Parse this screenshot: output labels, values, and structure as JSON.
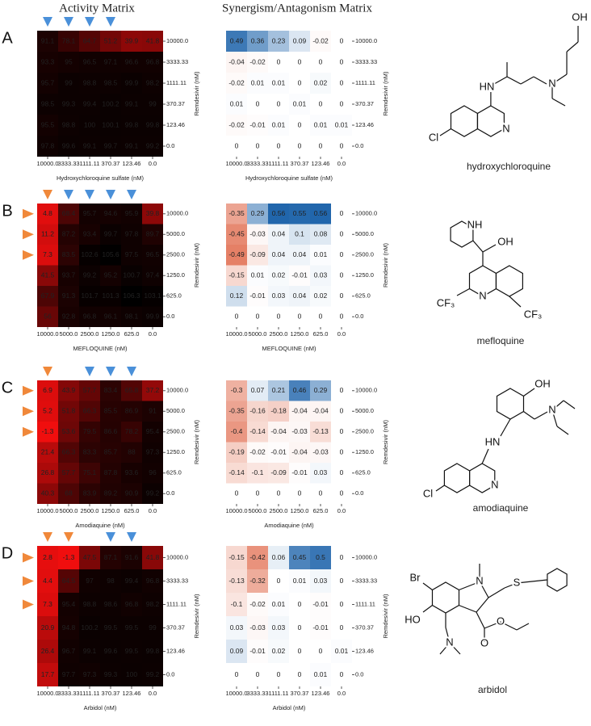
{
  "headers": [
    "Activity Matrix",
    "Synergism/Antagonism Matrix"
  ],
  "panels": [
    {
      "label": "A",
      "compound": "hydroxychloroquine",
      "xlabel": "Hydroxychloroquine sulfate (nM)",
      "ylabel": "Remdesivir (nM)",
      "x_categories": [
        "10000.0",
        "3333.33",
        "1111.11",
        "370.37",
        "123.46",
        "0.0"
      ],
      "y_categories": [
        "10000.0",
        "3333.33",
        "1111.11",
        "370.37",
        "123.46",
        "0.0"
      ],
      "col_markers": [
        "#4a90d9",
        "#4a90d9",
        "#4a90d9",
        "#4a90d9",
        null,
        null
      ],
      "row_markers": [
        null,
        null,
        null,
        null,
        null,
        null
      ],
      "activity": {
        "values": [
          [
            91.1,
            78.1,
            64.7,
            51.2,
            39.9,
            41.8
          ],
          [
            93.3,
            95,
            96.5,
            97.1,
            96.6,
            96.8
          ],
          [
            95.7,
            99,
            98.8,
            98.5,
            99.9,
            98.2
          ],
          [
            98.5,
            99.3,
            99.4,
            100.2,
            99.1,
            99
          ],
          [
            95.5,
            98.8,
            100,
            100.1,
            99.8,
            99.8
          ],
          [
            97.8,
            99.6,
            99.1,
            99.7,
            99.1,
            99.2
          ]
        ]
      },
      "synergy": {
        "values": [
          [
            0.49,
            0.36,
            0.23,
            0.09,
            -0.02,
            0
          ],
          [
            -0.04,
            -0.02,
            0,
            0,
            0,
            0
          ],
          [
            -0.02,
            0.01,
            0.01,
            0,
            0.02,
            0
          ],
          [
            0.01,
            0,
            0,
            0.01,
            0,
            0
          ],
          [
            -0.02,
            -0.01,
            0.01,
            0,
            0.01,
            0.01
          ],
          [
            0,
            0,
            0,
            0,
            0,
            0
          ]
        ]
      },
      "structure_labels": [
        "Cl",
        "HN",
        "N",
        "N",
        "OH"
      ]
    },
    {
      "label": "B",
      "compound": "mefloquine",
      "xlabel": "MEFLOQUINE (nM)",
      "ylabel": "Remdesivir (nM)",
      "x_categories": [
        "10000.0",
        "5000.0",
        "2500.0",
        "1250.0",
        "625.0",
        "0.0"
      ],
      "y_categories": [
        "10000.0",
        "5000.0",
        "2500.0",
        "1250.0",
        "625.0",
        "0.0"
      ],
      "col_markers": [
        "#f0883a",
        "#4a90d9",
        "#4a90d9",
        "#4a90d9",
        "#4a90d9",
        null
      ],
      "row_markers": [
        "#f0883a",
        "#f0883a",
        "#f0883a",
        null,
        null,
        null
      ],
      "activity": {
        "values": [
          [
            4.8,
            68.4,
            95.7,
            94.6,
            95.9,
            39.8
          ],
          [
            11.2,
            87.2,
            93.4,
            99.7,
            97.8,
            89.7
          ],
          [
            7.3,
            83.5,
            102.6,
            105.6,
            97.5,
            96.5
          ],
          [
            41.5,
            93.7,
            99.2,
            95.2,
            100.7,
            97.4
          ],
          [
            67.9,
            91.3,
            101.7,
            101.3,
            106.3,
            103.1
          ],
          [
            56,
            92.8,
            96.8,
            96.1,
            98.1,
            99.9
          ]
        ]
      },
      "synergy": {
        "values": [
          [
            -0.35,
            0.29,
            0.56,
            0.55,
            0.56,
            0
          ],
          [
            -0.45,
            -0.03,
            0.04,
            0.1,
            0.08,
            0
          ],
          [
            -0.49,
            -0.09,
            0.04,
            0.04,
            0.01,
            0
          ],
          [
            -0.15,
            0.01,
            0.02,
            -0.01,
            0.03,
            0
          ],
          [
            0.12,
            -0.01,
            0.03,
            0.04,
            0.02,
            0
          ],
          [
            0,
            0,
            0,
            0,
            0,
            0
          ]
        ]
      },
      "structure_labels": [
        "NH",
        "OH",
        "CF₃",
        "N",
        "CF₃"
      ]
    },
    {
      "label": "C",
      "compound": "amodiaquine",
      "xlabel": "Amodiaquine (nM)",
      "ylabel": "Remdesivir (nM)",
      "x_categories": [
        "10000.0",
        "5000.0",
        "2500.0",
        "1250.0",
        "625.0",
        "0.0"
      ],
      "y_categories": [
        "10000.0",
        "5000.0",
        "2500.0",
        "1250.0",
        "625.0",
        "0.0"
      ],
      "col_markers": [
        "#f0883a",
        null,
        "#4a90d9",
        "#4a90d9",
        "#4a90d9",
        null
      ],
      "row_markers": [
        "#f0883a",
        "#f0883a",
        "#f0883a",
        null,
        null,
        null
      ],
      "activity": {
        "values": [
          [
            6.9,
            43.9,
            57.7,
            83.4,
            65.8,
            37.2
          ],
          [
            5.2,
            51.8,
            66.3,
            85.5,
            86.9,
            91
          ],
          [
            -1.3,
            53.6,
            79.5,
            86.6,
            78.2,
            95.4
          ],
          [
            21.4,
            66.3,
            83.3,
            85.7,
            88,
            97.3
          ],
          [
            26.8,
            57.7,
            75.1,
            87.8,
            93.6,
            96
          ],
          [
            40.3,
            68,
            83.9,
            89.2,
            90.9,
            99.2
          ]
        ]
      },
      "synergy": {
        "values": [
          [
            -0.3,
            0.07,
            0.21,
            0.46,
            0.29,
            0
          ],
          [
            -0.35,
            -0.16,
            -0.18,
            -0.04,
            -0.04,
            0
          ],
          [
            -0.4,
            -0.14,
            -0.04,
            -0.03,
            -0.13,
            0
          ],
          [
            -0.19,
            -0.02,
            -0.01,
            -0.04,
            -0.03,
            0
          ],
          [
            -0.14,
            -0.1,
            -0.09,
            -0.01,
            0.03,
            0
          ],
          [
            0,
            0,
            0,
            0,
            0,
            0
          ]
        ]
      },
      "structure_labels": [
        "OH",
        "N",
        "HN",
        "Cl",
        "N"
      ]
    },
    {
      "label": "D",
      "compound": "arbidol",
      "xlabel": "Arbidol (nM)",
      "ylabel": "Remdesivir (nM)",
      "x_categories": [
        "10000.0",
        "3333.33",
        "1111.11",
        "370.37",
        "123.46",
        "0.0"
      ],
      "y_categories": [
        "10000.0",
        "3333.33",
        "1111.11",
        "370.37",
        "123.46",
        "0.0"
      ],
      "col_markers": [
        "#f0883a",
        "#f0883a",
        null,
        "#4a90d9",
        "#4a90d9",
        null
      ],
      "row_markers": [
        "#f0883a",
        "#f0883a",
        "#f0883a",
        null,
        null,
        null
      ],
      "activity": {
        "values": [
          [
            2.8,
            -1.3,
            47.5,
            87.1,
            91.6,
            41.8
          ],
          [
            4.4,
            64.5,
            97,
            98,
            99.4,
            96.8
          ],
          [
            7.3,
            95.4,
            98.8,
            98.6,
            96.8,
            98.2
          ],
          [
            20.9,
            94.8,
            100.2,
            99.5,
            99.5,
            99
          ],
          [
            26.4,
            96.7,
            99.1,
            99.6,
            99.5,
            99.8
          ],
          [
            17.7,
            97.7,
            97.3,
            99.3,
            100,
            99.2
          ]
        ]
      },
      "synergy": {
        "values": [
          [
            -0.15,
            -0.42,
            0.06,
            0.45,
            0.5,
            0
          ],
          [
            -0.13,
            -0.32,
            0,
            0.01,
            0.03,
            0
          ],
          [
            -0.1,
            -0.02,
            0.01,
            0,
            -0.01,
            0
          ],
          [
            0.03,
            -0.03,
            0.03,
            0,
            -0.01,
            0
          ],
          [
            0.09,
            -0.01,
            0.02,
            0,
            0,
            0.01
          ],
          [
            0,
            0,
            0,
            0,
            0.01,
            0
          ]
        ]
      },
      "structure_labels": [
        "Br",
        "HO",
        "N",
        "S",
        "N",
        "O",
        "O"
      ]
    }
  ]
}
